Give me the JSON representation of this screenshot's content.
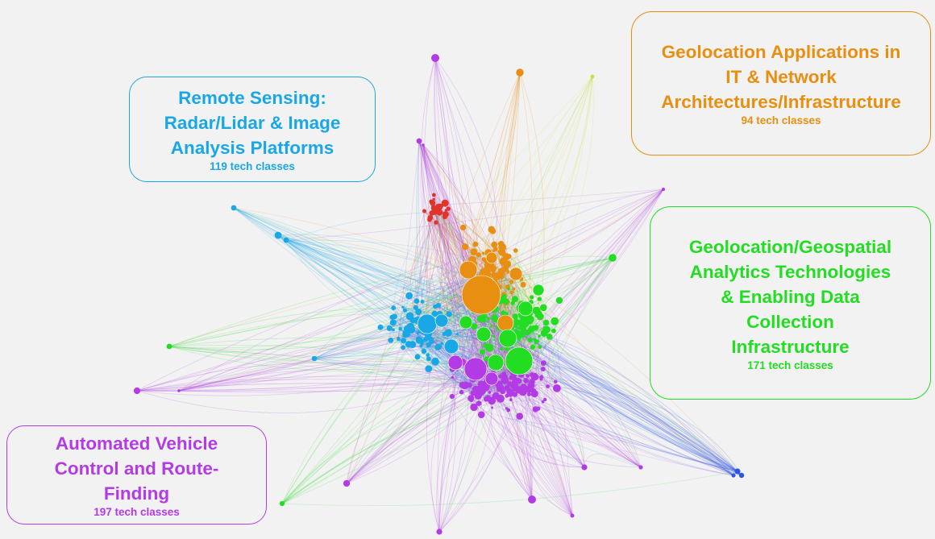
{
  "colors": {
    "background": "#f2f2f2",
    "remote_sensing": "#1aa7e6",
    "it_network": "#e88f12",
    "geospatial": "#22dd22",
    "vehicle": "#b33be6",
    "red_cluster": "#e0342b",
    "blue_cluster": "#2d55e8",
    "yellow_cluster": "#c9e23a"
  },
  "clusters": [
    {
      "id": "remote",
      "title_lines": [
        "Remote Sensing:",
        "Radar/Lidar & Image",
        "Analysis Platforms"
      ],
      "count": "119 tech classes",
      "color": "#1aa7e6"
    },
    {
      "id": "it",
      "title_lines": [
        "Geolocation Applications in",
        "IT & Network",
        "Architectures/Infrastructure"
      ],
      "count": "94 tech classes",
      "color": "#e88f12"
    },
    {
      "id": "geo",
      "title_lines": [
        "Geolocation/Geospatial",
        "Analytics Technologies",
        "& Enabling Data",
        "Collection",
        "Infrastructure"
      ],
      "count": "171 tech classes",
      "color": "#22dd22"
    },
    {
      "id": "avc",
      "title_lines": [
        "Automated Vehicle",
        "Control and Route-",
        "Finding"
      ],
      "count": "197 tech classes",
      "color": "#b33be6"
    }
  ]
}
